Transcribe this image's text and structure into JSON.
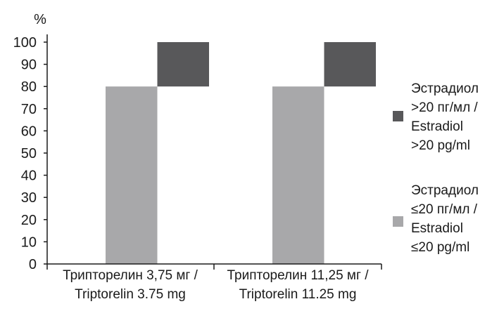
{
  "chart_data": {
    "type": "bar",
    "stacked": true,
    "ylabel": "%",
    "ylim": [
      0,
      100
    ],
    "yticks": [
      0,
      10,
      20,
      30,
      40,
      50,
      60,
      70,
      80,
      90,
      100
    ],
    "categories": [
      [
        "Трипторелин 3,75 мг /",
        "Triptorelin 3.75 mg"
      ],
      [
        "Трипторелин 11,25 мг /",
        "Triptorelin 11.25 mg"
      ]
    ],
    "series": [
      {
        "name_lines": [
          "Эстрадиол",
          "≤20 пг/мл /",
          "Estradiol",
          "≤20 pg/ml"
        ],
        "color": "#a8a8aa",
        "values": [
          80,
          80
        ]
      },
      {
        "name_lines": [
          "Эстрадиол",
          ">20 пг/мл /",
          "Estradiol",
          ">20 pg/ml"
        ],
        "color": "#58585a",
        "values": [
          20,
          20
        ]
      }
    ],
    "grid": false,
    "legend_position": "right"
  }
}
